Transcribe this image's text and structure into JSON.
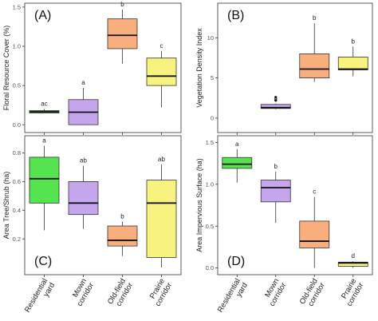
{
  "colors": {
    "residential": "#55e34f",
    "mown": "#c5a6ec",
    "oldfield": "#f8ae7d",
    "prairie": "#f8f27e",
    "axis": "#333333"
  },
  "chart_data": [
    {
      "type": "box",
      "panel_label": "(A)",
      "ylabel": "Floral Resource Cover (%)",
      "ylim": [
        -0.1,
        1.55
      ],
      "yticks": [
        0.0,
        0.5,
        1.0,
        1.5
      ],
      "ytick_labels": [
        "0.0",
        "0.5",
        "1.0",
        "1.5"
      ],
      "categories": [
        "Residential yard",
        "Mown corridor",
        "Old-field corridor",
        "Prairie corridor"
      ],
      "boxes": [
        {
          "min": 0.15,
          "q1": 0.15,
          "median": 0.165,
          "q3": 0.18,
          "max": 0.2,
          "outliers": [],
          "letter": "ac"
        },
        {
          "min": 0.0,
          "q1": 0.0,
          "median": 0.16,
          "q3": 0.32,
          "max": 0.47,
          "outliers": [],
          "letter": "a"
        },
        {
          "min": 0.78,
          "q1": 0.97,
          "median": 1.14,
          "q3": 1.35,
          "max": 1.47,
          "outliers": [],
          "letter": "b"
        },
        {
          "min": 0.22,
          "q1": 0.5,
          "median": 0.62,
          "q3": 0.85,
          "max": 0.94,
          "outliers": [],
          "letter": "c"
        }
      ]
    },
    {
      "type": "box",
      "panel_label": "(B)",
      "ylabel": "Vegetation Density Index",
      "ylim": [
        -1.8,
        14.3
      ],
      "yticks": [
        0,
        5,
        10
      ],
      "ytick_labels": [
        "0",
        "5",
        "10"
      ],
      "categories": [
        "Residential yard",
        "Mown corridor",
        "Old-field corridor",
        "Prairie corridor"
      ],
      "boxes": [
        null,
        {
          "min": 1.1,
          "q1": 1.2,
          "median": 1.3,
          "q3": 1.7,
          "max": 1.8,
          "outliers": [
            2.2,
            2.6
          ],
          "letter": "a"
        },
        {
          "min": 4.5,
          "q1": 5.0,
          "median": 6.1,
          "q3": 8.0,
          "max": 11.8,
          "outliers": [],
          "letter": "b"
        },
        {
          "min": 5.2,
          "q1": 6.0,
          "median": 6.1,
          "q3": 7.6,
          "max": 8.9,
          "outliers": [],
          "letter": "b"
        }
      ]
    },
    {
      "type": "box",
      "panel_label": "(C)",
      "ylabel": "Area Tree/Shrub (ha)",
      "ylim": [
        -0.05,
        0.92
      ],
      "yticks": [
        0.2,
        0.4,
        0.6,
        0.8
      ],
      "ytick_labels": [
        "0.2",
        "0.4",
        "0.6",
        "0.8"
      ],
      "categories": [
        "Residential yard",
        "Mown corridor",
        "Old-field corridor",
        "Prairie corridor"
      ],
      "boxes": [
        {
          "min": 0.26,
          "q1": 0.45,
          "median": 0.62,
          "q3": 0.77,
          "max": 0.85,
          "outliers": [],
          "letter": "a"
        },
        {
          "min": 0.27,
          "q1": 0.37,
          "median": 0.45,
          "q3": 0.6,
          "max": 0.71,
          "outliers": [],
          "letter": "ab"
        },
        {
          "min": 0.08,
          "q1": 0.15,
          "median": 0.19,
          "q3": 0.29,
          "max": 0.32,
          "outliers": [],
          "letter": "b"
        },
        {
          "min": 0.0,
          "q1": 0.07,
          "median": 0.45,
          "q3": 0.61,
          "max": 0.72,
          "outliers": [],
          "letter": "ab"
        }
      ]
    },
    {
      "type": "box",
      "panel_label": "(D)",
      "ylabel": "Area Impervious Surface (ha)",
      "ylim": [
        -0.08,
        1.58
      ],
      "yticks": [
        0.0,
        0.5,
        1.0,
        1.5
      ],
      "ytick_labels": [
        "0.0",
        "0.5",
        "1.0",
        "1.5"
      ],
      "categories": [
        "Residential yard",
        "Mown corridor",
        "Old-field corridor",
        "Prairie corridor"
      ],
      "boxes": [
        {
          "min": 1.02,
          "q1": 1.19,
          "median": 1.24,
          "q3": 1.32,
          "max": 1.42,
          "outliers": [],
          "letter": "a"
        },
        {
          "min": 0.54,
          "q1": 0.79,
          "median": 0.96,
          "q3": 1.05,
          "max": 1.15,
          "outliers": [],
          "letter": "b"
        },
        {
          "min": 0.0,
          "q1": 0.24,
          "median": 0.32,
          "q3": 0.56,
          "max": 0.85,
          "outliers": [],
          "letter": "c"
        },
        {
          "min": 0.0,
          "q1": 0.02,
          "median": 0.06,
          "q3": 0.07,
          "max": 0.08,
          "outliers": [],
          "letter": "d"
        }
      ]
    }
  ],
  "x_category_lines": [
    [
      "Residential",
      "yard"
    ],
    [
      "Mown",
      "corridor"
    ],
    [
      "Old-field",
      "corridor"
    ],
    [
      "Prairie",
      "corridor"
    ]
  ]
}
